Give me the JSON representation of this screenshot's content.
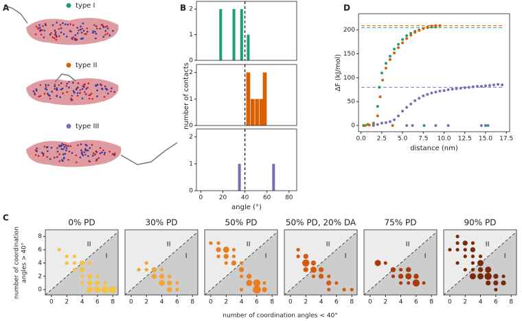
{
  "panel_labels": [
    "A",
    "B",
    "C",
    "D"
  ],
  "panel_a": {
    "labels": [
      "type I",
      "type II",
      "type III"
    ],
    "colors": [
      "#1b9e77",
      "#d95f02",
      "#7570b3"
    ]
  },
  "labels": {
    "b_ylabel": "number of contacts",
    "c_xlabel": "number of coordination angles < 40°",
    "c_ylabel": [
      "number of coordination",
      "angles > 40°"
    ]
  },
  "chart_data": [
    {
      "type": "bar",
      "x": [
        18,
        30,
        37,
        43
      ],
      "values": [
        2,
        2,
        2,
        1
      ],
      "bar_width": 2.5,
      "color": "#1b9e77",
      "xlim": [
        -4,
        87
      ],
      "ylim": [
        0,
        2.3
      ],
      "yticks": [
        0,
        1,
        2
      ],
      "vline": 40
    },
    {
      "type": "bar",
      "x": [
        43,
        47,
        51,
        55,
        58
      ],
      "values": [
        2,
        1,
        1,
        1,
        2
      ],
      "bar_width": 3.6,
      "color": "#d95f02",
      "xlim": [
        -4,
        87
      ],
      "ylim": [
        0,
        2.3
      ],
      "yticks": [
        0,
        1,
        2
      ],
      "vline": 40
    },
    {
      "type": "bar",
      "x": [
        35,
        66
      ],
      "values": [
        1,
        1
      ],
      "bar_width": 2.5,
      "color": "#7570b3",
      "xlim": [
        -4,
        87
      ],
      "ylim": [
        0,
        2.3
      ],
      "yticks": [
        0,
        1,
        2
      ],
      "xticks": [
        0,
        20,
        40,
        60,
        80
      ],
      "xlabel": "angle (°)",
      "vline": 40
    },
    {
      "type": "scatter",
      "xlabel": "distance (nm)",
      "ylabel": "ΔF (kJ/mol)",
      "xlim": [
        -0.3,
        17.9
      ],
      "ylim": [
        -13,
        234
      ],
      "xticks": [
        {
          "value": 0,
          "label": "0.0"
        },
        2.5,
        {
          "value": 5,
          "label": "5.0"
        },
        7.5,
        {
          "value": 10,
          "label": "10.0"
        },
        12.5,
        {
          "value": 15,
          "label": "15.0"
        },
        17.5
      ],
      "yticks": [
        0,
        50,
        100,
        150,
        200
      ],
      "series": [
        {
          "color": "#1b9e77",
          "x": [
            0.3,
            0.8,
            1.5,
            2.0,
            2.2,
            2.5,
            3.0,
            3.5,
            4.0,
            4.5,
            5.0,
            5.5,
            6.0,
            6.5,
            7.0,
            7.5,
            8.0,
            8.5,
            9.0,
            7.6,
            15.0
          ],
          "values": [
            0,
            2,
            5,
            40,
            80,
            110,
            130,
            145,
            160,
            170,
            180,
            188,
            193,
            197,
            200,
            203,
            205,
            206,
            206,
            0,
            0
          ]
        },
        {
          "color": "#d95f02",
          "x": [
            0.5,
            1.0,
            1.5,
            2.0,
            2.3,
            2.6,
            3.0,
            3.5,
            4.0,
            4.5,
            5.0,
            5.5,
            6.0,
            6.5,
            7.0,
            7.5,
            8.0,
            8.5,
            9.0,
            9.5,
            3.8
          ],
          "values": [
            0,
            1,
            3,
            20,
            60,
            95,
            120,
            138,
            152,
            163,
            173,
            182,
            189,
            195,
            199,
            203,
            206,
            208,
            209,
            209,
            0
          ]
        },
        {
          "color": "#7570b3",
          "x": [
            1.5,
            2,
            2.5,
            3,
            3.5,
            4,
            4.5,
            5,
            5.5,
            6,
            6.5,
            7,
            7.5,
            8,
            8.5,
            9,
            9.5,
            10,
            10.5,
            11,
            11.5,
            12,
            12.5,
            13,
            13.5,
            14,
            14.5,
            15,
            15.5,
            16,
            16.5,
            17,
            5.5,
            6.2,
            9.0,
            10.5,
            14.5,
            15.3
          ],
          "values": [
            0,
            2,
            5,
            6,
            8,
            12,
            20,
            30,
            38,
            45,
            52,
            57,
            62,
            65,
            68,
            70,
            72,
            73,
            75,
            76,
            77,
            78,
            79,
            80,
            81,
            82,
            82,
            83,
            84,
            85,
            86,
            85,
            0,
            0,
            0,
            0,
            0,
            0
          ]
        }
      ],
      "hlines": [
        {
          "value": 205,
          "color": "#1b9e77"
        },
        {
          "value": 209,
          "color": "#d95f02"
        },
        {
          "value": 80,
          "color": "#7570b3"
        }
      ]
    },
    {
      "type": "bubble",
      "title": "0% PD",
      "color": "#f6c244",
      "xlim": [
        -0.8,
        8.7
      ],
      "ylim": [
        -0.8,
        9
      ],
      "xticks": [
        0,
        2,
        4,
        6,
        8
      ],
      "yticks": [
        0,
        2,
        4,
        6,
        8
      ],
      "region_labels": [
        "II",
        "I"
      ],
      "x": [
        1,
        2,
        3,
        3,
        4,
        4,
        5,
        4,
        5,
        5,
        6,
        5,
        6,
        7,
        8,
        6,
        7,
        3,
        4,
        2
      ],
      "values": [
        6,
        5,
        5,
        4,
        4,
        3,
        4,
        2,
        2,
        1,
        1,
        0,
        0,
        0,
        0,
        2,
        1,
        3,
        1,
        4
      ],
      "sizes": [
        1,
        1,
        1,
        1,
        2,
        2,
        1,
        1,
        2,
        2,
        2,
        3,
        3,
        4,
        4,
        1,
        1,
        1,
        1,
        1
      ]
    },
    {
      "type": "bubble",
      "title": "30% PD",
      "color": "#f2a534",
      "xlim": [
        -0.8,
        8.7
      ],
      "ylim": [
        -0.8,
        9
      ],
      "xticks": [
        0,
        2,
        4,
        6,
        8
      ],
      "region_labels": [
        "II",
        "I"
      ],
      "x": [
        2,
        3,
        4,
        3,
        4,
        5,
        4,
        5,
        6,
        5,
        6,
        2,
        1
      ],
      "values": [
        4,
        3,
        3,
        2,
        2,
        2,
        1,
        1,
        1,
        0,
        0,
        3,
        3
      ],
      "sizes": [
        1,
        2,
        1,
        2,
        2,
        1,
        3,
        2,
        1,
        2,
        1,
        1,
        1
      ]
    },
    {
      "type": "bubble",
      "title": "50% PD",
      "color": "#ea7d1e",
      "xlim": [
        -0.8,
        8.7
      ],
      "ylim": [
        -0.8,
        9
      ],
      "xticks": [
        0,
        2,
        4,
        6,
        8
      ],
      "region_labels": [
        "II",
        "I"
      ],
      "x": [
        1,
        1,
        2,
        2,
        3,
        3,
        2,
        4,
        4,
        4,
        5,
        5,
        6,
        6,
        7,
        4,
        7,
        3,
        1,
        0
      ],
      "values": [
        7,
        6,
        6,
        5,
        5,
        4,
        4,
        4,
        3,
        2,
        2,
        1,
        1,
        0,
        0,
        0,
        1,
        6,
        5,
        7
      ],
      "sizes": [
        1,
        2,
        3,
        2,
        1,
        2,
        1,
        1,
        2,
        1,
        2,
        3,
        4,
        5,
        2,
        1,
        1,
        1,
        1,
        1
      ]
    },
    {
      "type": "bubble",
      "title": "50% PD, 20% DA",
      "color": "#d35a0e",
      "xlim": [
        -0.8,
        8.7
      ],
      "ylim": [
        -0.8,
        9
      ],
      "xticks": [
        0,
        2,
        4,
        6,
        8
      ],
      "region_labels": [
        "II",
        "I"
      ],
      "x": [
        1,
        2,
        2,
        3,
        3,
        4,
        2,
        4,
        5,
        5,
        6,
        5,
        7,
        8,
        3,
        1
      ],
      "values": [
        6,
        5,
        4,
        4,
        3,
        3,
        3,
        2,
        2,
        1,
        1,
        0,
        0,
        0,
        2,
        5
      ],
      "sizes": [
        1,
        2,
        4,
        2,
        3,
        2,
        2,
        2,
        1,
        2,
        1,
        1,
        1,
        1,
        1,
        1
      ]
    },
    {
      "type": "bubble",
      "title": "75% PD",
      "color": "#ad3a0a",
      "xlim": [
        -0.8,
        8.7
      ],
      "ylim": [
        -0.8,
        9
      ],
      "xticks": [
        0,
        2,
        4,
        6,
        8
      ],
      "region_labels": [
        "II",
        "I"
      ],
      "x": [
        1,
        2,
        3,
        4,
        5,
        4,
        5,
        6,
        6,
        4,
        5,
        7,
        3
      ],
      "values": [
        4,
        4,
        3,
        3,
        3,
        2,
        2,
        2,
        1,
        1,
        1,
        1,
        2
      ],
      "sizes": [
        3,
        1,
        2,
        1,
        2,
        2,
        3,
        2,
        4,
        1,
        1,
        1,
        1
      ]
    },
    {
      "type": "bubble",
      "title": "90% PD",
      "color": "#7a2a0a",
      "xlim": [
        -0.8,
        8.7
      ],
      "ylim": [
        -0.8,
        9
      ],
      "xticks": [
        0,
        2,
        4,
        6,
        8
      ],
      "region_labels": [
        "II",
        "I"
      ],
      "x": [
        1,
        1,
        2,
        3,
        2,
        3,
        1,
        2,
        3,
        4,
        4,
        3,
        4,
        3,
        2,
        5,
        3,
        4,
        5,
        6,
        7,
        5,
        6,
        7,
        6,
        1,
        0
      ],
      "values": [
        8,
        7,
        7,
        7,
        6,
        6,
        6,
        5,
        5,
        5,
        4,
        4,
        3,
        3,
        3,
        3,
        2,
        2,
        2,
        2,
        2,
        1,
        1,
        1,
        0,
        4,
        6
      ],
      "sizes": [
        1,
        1,
        2,
        1,
        1,
        2,
        1,
        1,
        1,
        1,
        3,
        1,
        2,
        1,
        1,
        3,
        3,
        3,
        4,
        2,
        1,
        2,
        2,
        2,
        1,
        1,
        1
      ]
    }
  ]
}
